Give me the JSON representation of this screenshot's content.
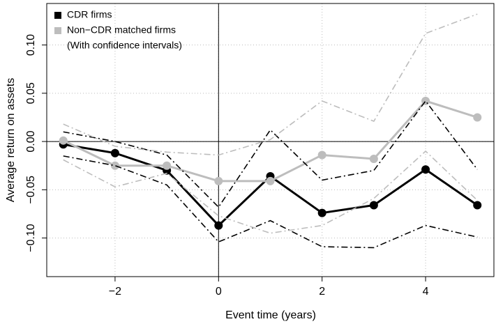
{
  "chart_data": {
    "type": "line",
    "xlabel": "Event time (years)",
    "ylabel": "Average return on assets",
    "x": [
      -3,
      -2,
      -1,
      0,
      1,
      2,
      3,
      4,
      5
    ],
    "series": [
      {
        "name": "CDR firms",
        "color": "#000000",
        "style": "solid",
        "markers": true,
        "values": [
          -0.003,
          -0.012,
          -0.03,
          -0.087,
          -0.036,
          -0.074,
          -0.066,
          -0.029,
          -0.066
        ]
      },
      {
        "name": "Non−CDR matched firms",
        "color": "#bdbdbd",
        "style": "solid",
        "markers": true,
        "values": [
          0.001,
          -0.025,
          -0.025,
          -0.041,
          -0.041,
          -0.014,
          -0.018,
          0.042,
          0.025
        ]
      },
      {
        "color": "#000000",
        "style": "dashdot",
        "markers": false,
        "values": [
          0.01,
          0.0,
          -0.014,
          -0.068,
          0.012,
          -0.04,
          -0.03,
          0.042,
          -0.029
        ]
      },
      {
        "color": "#000000",
        "style": "dashdot",
        "markers": false,
        "values": [
          -0.015,
          -0.025,
          -0.045,
          -0.104,
          -0.082,
          -0.109,
          -0.11,
          -0.087,
          -0.099
        ]
      },
      {
        "color": "#bdbdbd",
        "style": "dashdot",
        "markers": false,
        "values": [
          0.018,
          -0.005,
          -0.011,
          -0.014,
          0.002,
          0.042,
          0.021,
          0.112,
          0.132
        ]
      },
      {
        "color": "#bdbdbd",
        "style": "dashdot",
        "markers": false,
        "values": [
          -0.019,
          -0.047,
          -0.033,
          -0.077,
          -0.095,
          -0.087,
          -0.059,
          -0.01,
          -0.061
        ]
      }
    ],
    "legend_note": "(With confidence intervals)",
    "legend_position": "top-left",
    "xlim": [
      -3.32,
      5.32
    ],
    "ylim": [
      -0.14,
      0.143
    ],
    "xticks": [
      {
        "value": -2,
        "label": "−2"
      },
      0,
      2,
      4
    ],
    "yticks": [
      {
        "value": -0.1,
        "label": "−0.10"
      },
      {
        "value": -0.05,
        "label": "−0.05"
      },
      {
        "value": 0,
        "label": "0.00"
      },
      {
        "value": 0.05,
        "label": "0.05"
      },
      {
        "value": 0.1,
        "label": "0.10"
      }
    ],
    "grid": true,
    "hline": 0,
    "vline": 0
  }
}
